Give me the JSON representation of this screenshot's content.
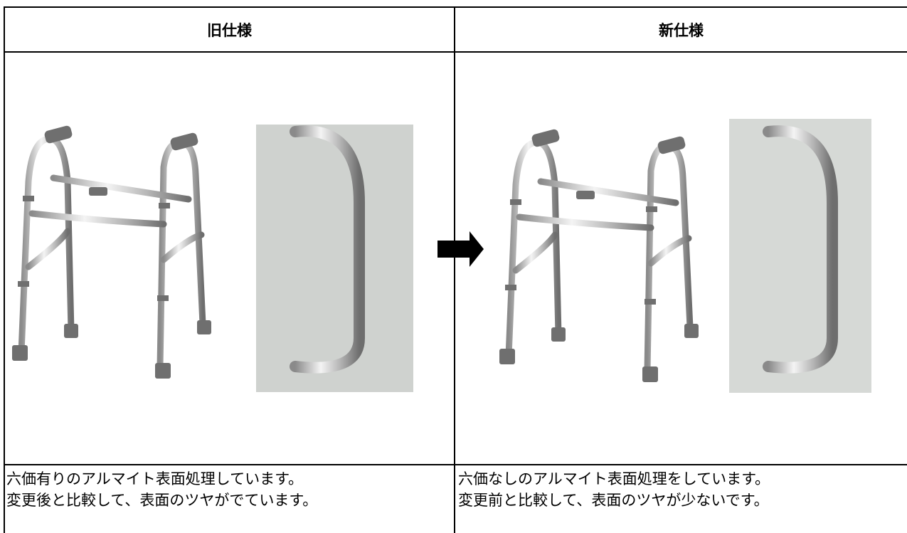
{
  "table": {
    "headers": [
      "旧仕様",
      "新仕様"
    ],
    "descriptions": [
      [
        "六価有りのアルマイト表面処理しています。",
        "変更後と比較して、表面のツヤがでています。"
      ],
      [
        "六価なしのアルマイト表面処理をしています。",
        "変更前と比較して、表面のツヤが少ないです。"
      ]
    ]
  }
}
